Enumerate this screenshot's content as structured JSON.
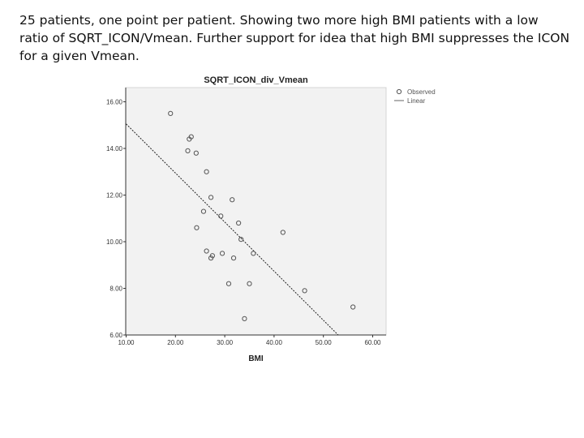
{
  "caption": "25 patients, one point per patient. Showing two more high BMI patients with a low ratio of SQRT_ICON/Vmean. Further support for idea that high BMI suppresses the ICON for a given Vmean.",
  "chart_data": {
    "type": "scatter",
    "title": "SQRT_ICON_div_Vmean",
    "xlabel": "BMI",
    "ylabel": "",
    "xlim": [
      10,
      62
    ],
    "ylim": [
      6,
      16.5
    ],
    "x_ticks": [
      10,
      20,
      30,
      40,
      50,
      60
    ],
    "x_tick_labels": [
      "10.00",
      "20.00",
      "30.00",
      "40.00",
      "50.00",
      "60.00"
    ],
    "y_ticks": [
      6,
      8,
      10,
      12,
      14,
      16
    ],
    "y_tick_labels": [
      "6.00",
      "8.00",
      "10.00",
      "12.00",
      "14.00",
      "16.00"
    ],
    "legend": {
      "placement": "top-right",
      "entries": [
        "Observed",
        "Linear"
      ]
    },
    "series": [
      {
        "name": "Observed",
        "points": [
          {
            "x": 19.0,
            "y": 15.5
          },
          {
            "x": 23.2,
            "y": 14.5
          },
          {
            "x": 22.8,
            "y": 14.4
          },
          {
            "x": 22.5,
            "y": 13.9
          },
          {
            "x": 24.2,
            "y": 13.8
          },
          {
            "x": 26.3,
            "y": 13.0
          },
          {
            "x": 27.2,
            "y": 11.9
          },
          {
            "x": 31.5,
            "y": 11.8
          },
          {
            "x": 25.7,
            "y": 11.3
          },
          {
            "x": 29.2,
            "y": 11.1
          },
          {
            "x": 32.8,
            "y": 10.8
          },
          {
            "x": 24.3,
            "y": 10.6
          },
          {
            "x": 41.8,
            "y": 10.4
          },
          {
            "x": 33.3,
            "y": 10.1
          },
          {
            "x": 26.3,
            "y": 9.6
          },
          {
            "x": 29.5,
            "y": 9.5
          },
          {
            "x": 35.8,
            "y": 9.5
          },
          {
            "x": 27.5,
            "y": 9.4
          },
          {
            "x": 27.2,
            "y": 9.3
          },
          {
            "x": 31.8,
            "y": 9.3
          },
          {
            "x": 30.8,
            "y": 8.2
          },
          {
            "x": 35.0,
            "y": 8.2
          },
          {
            "x": 46.2,
            "y": 7.9
          },
          {
            "x": 56.0,
            "y": 7.2
          },
          {
            "x": 34.0,
            "y": 6.7
          }
        ]
      },
      {
        "name": "Linear",
        "line": [
          {
            "x": 10.0,
            "y": 15.05
          },
          {
            "x": 53.0,
            "y": 6.0
          }
        ]
      }
    ]
  }
}
